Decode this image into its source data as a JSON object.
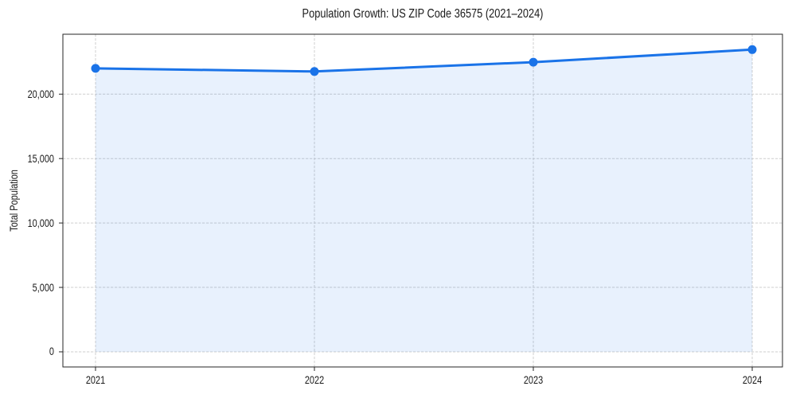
{
  "figure": {
    "background": "#ffffff",
    "text_color": "#1a1a1a"
  },
  "chart_data": {
    "type": "line",
    "title": "Population Growth: US ZIP Code 36575 (2021–2024)",
    "xlabel": "",
    "ylabel": "Total Population",
    "categories": [
      "2021",
      "2022",
      "2023",
      "2024"
    ],
    "series": [
      {
        "name": "Total Population",
        "values": [
          22000,
          21760,
          22480,
          23460
        ],
        "color": "#1a73e8",
        "line_width": 3,
        "marker": "circle",
        "marker_radius": 5.5,
        "fill_to_zero": true,
        "fill_opacity": 0.1
      }
    ],
    "yticks": [
      0,
      5000,
      10000,
      15000,
      20000
    ],
    "ytick_labels": [
      "0",
      "5,000",
      "10,000",
      "15,000",
      "20,000"
    ],
    "ylim": [
      -1175,
      24650
    ],
    "grid": {
      "show": true,
      "style": "dashed",
      "color": "#cfcfcf"
    },
    "legend": "none",
    "axes_color": "#262626"
  }
}
